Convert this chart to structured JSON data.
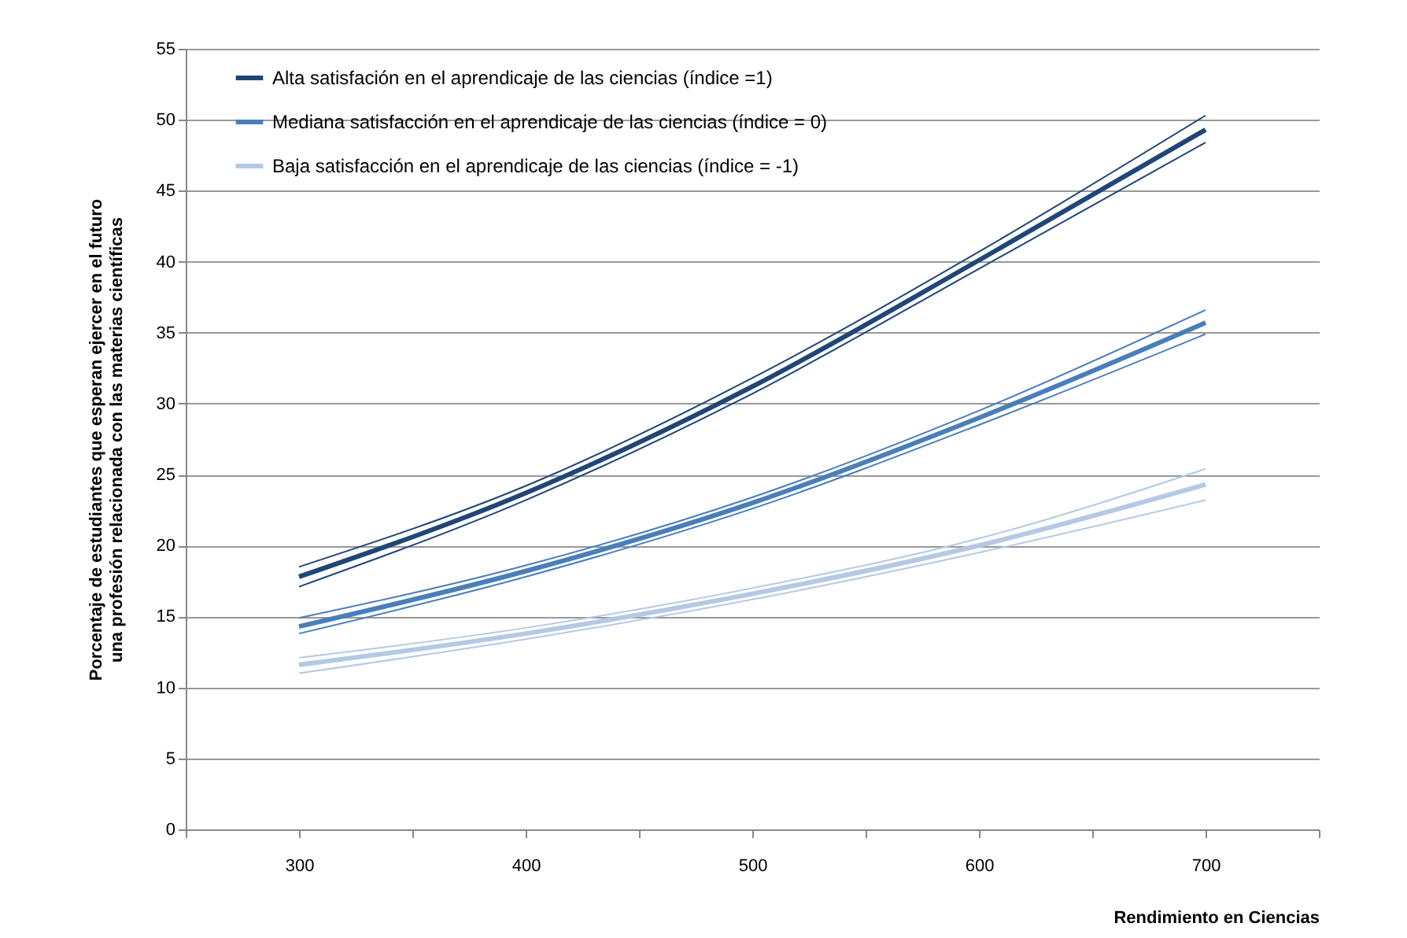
{
  "chart_data": {
    "type": "line",
    "xlabel": "Rendimiento en Ciencias",
    "ylabel": "Porcentaje de estudiantes que esperan  ejercer en el futuro una profesión relacionada con las materias científicas",
    "x": [
      300,
      400,
      500,
      600,
      700
    ],
    "series": [
      {
        "name": "Alta satisfación en el aprendicaje de las ciencias (índice =1)",
        "color": "#1f4677",
        "values": [
          17.8,
          23.7,
          31.2,
          40.1,
          49.3
        ]
      },
      {
        "color": "#1f4677",
        "values": [
          17.1,
          23.2,
          30.7,
          39.5,
          48.4
        ]
      },
      {
        "color": "#1f4677",
        "values": [
          18.5,
          24.2,
          31.8,
          40.7,
          50.3
        ]
      },
      {
        "name": "Mediana satisfacción en el aprendicaje de las ciencias (índice = 0)",
        "color": "#4a7ebb",
        "values": [
          14.3,
          18.2,
          23.0,
          29.0,
          35.7
        ]
      },
      {
        "color": "#4a7ebb",
        "values": [
          13.8,
          17.8,
          22.6,
          28.5,
          34.9
        ]
      },
      {
        "color": "#4a7ebb",
        "values": [
          14.9,
          18.6,
          23.4,
          29.5,
          36.6
        ]
      },
      {
        "name": "Baja satisfacción en el aprendicaje de las ciencias (índice = -1)",
        "color": "#b4c9e5",
        "values": [
          11.6,
          13.8,
          16.6,
          20.0,
          24.3
        ]
      },
      {
        "color": "#b4c9e5",
        "values": [
          11.0,
          13.4,
          16.2,
          19.5,
          23.2
        ]
      },
      {
        "color": "#b4c9e5",
        "values": [
          12.1,
          14.2,
          17.0,
          20.5,
          25.4
        ]
      }
    ],
    "xlim": [
      250,
      750
    ],
    "xticks": [
      {
        "value": 250,
        "label": null
      },
      300,
      {
        "value": 350,
        "label": null
      },
      400,
      {
        "value": 450,
        "label": null
      },
      500,
      {
        "value": 550,
        "label": null
      },
      600,
      {
        "value": 650,
        "label": null
      },
      700,
      {
        "value": 750,
        "label": null
      }
    ],
    "ylim": [
      0,
      55
    ],
    "yticks": [
      0,
      5,
      10,
      15,
      20,
      25,
      30,
      35,
      40,
      45,
      50,
      55
    ],
    "grid": "y",
    "legend": "top left"
  }
}
